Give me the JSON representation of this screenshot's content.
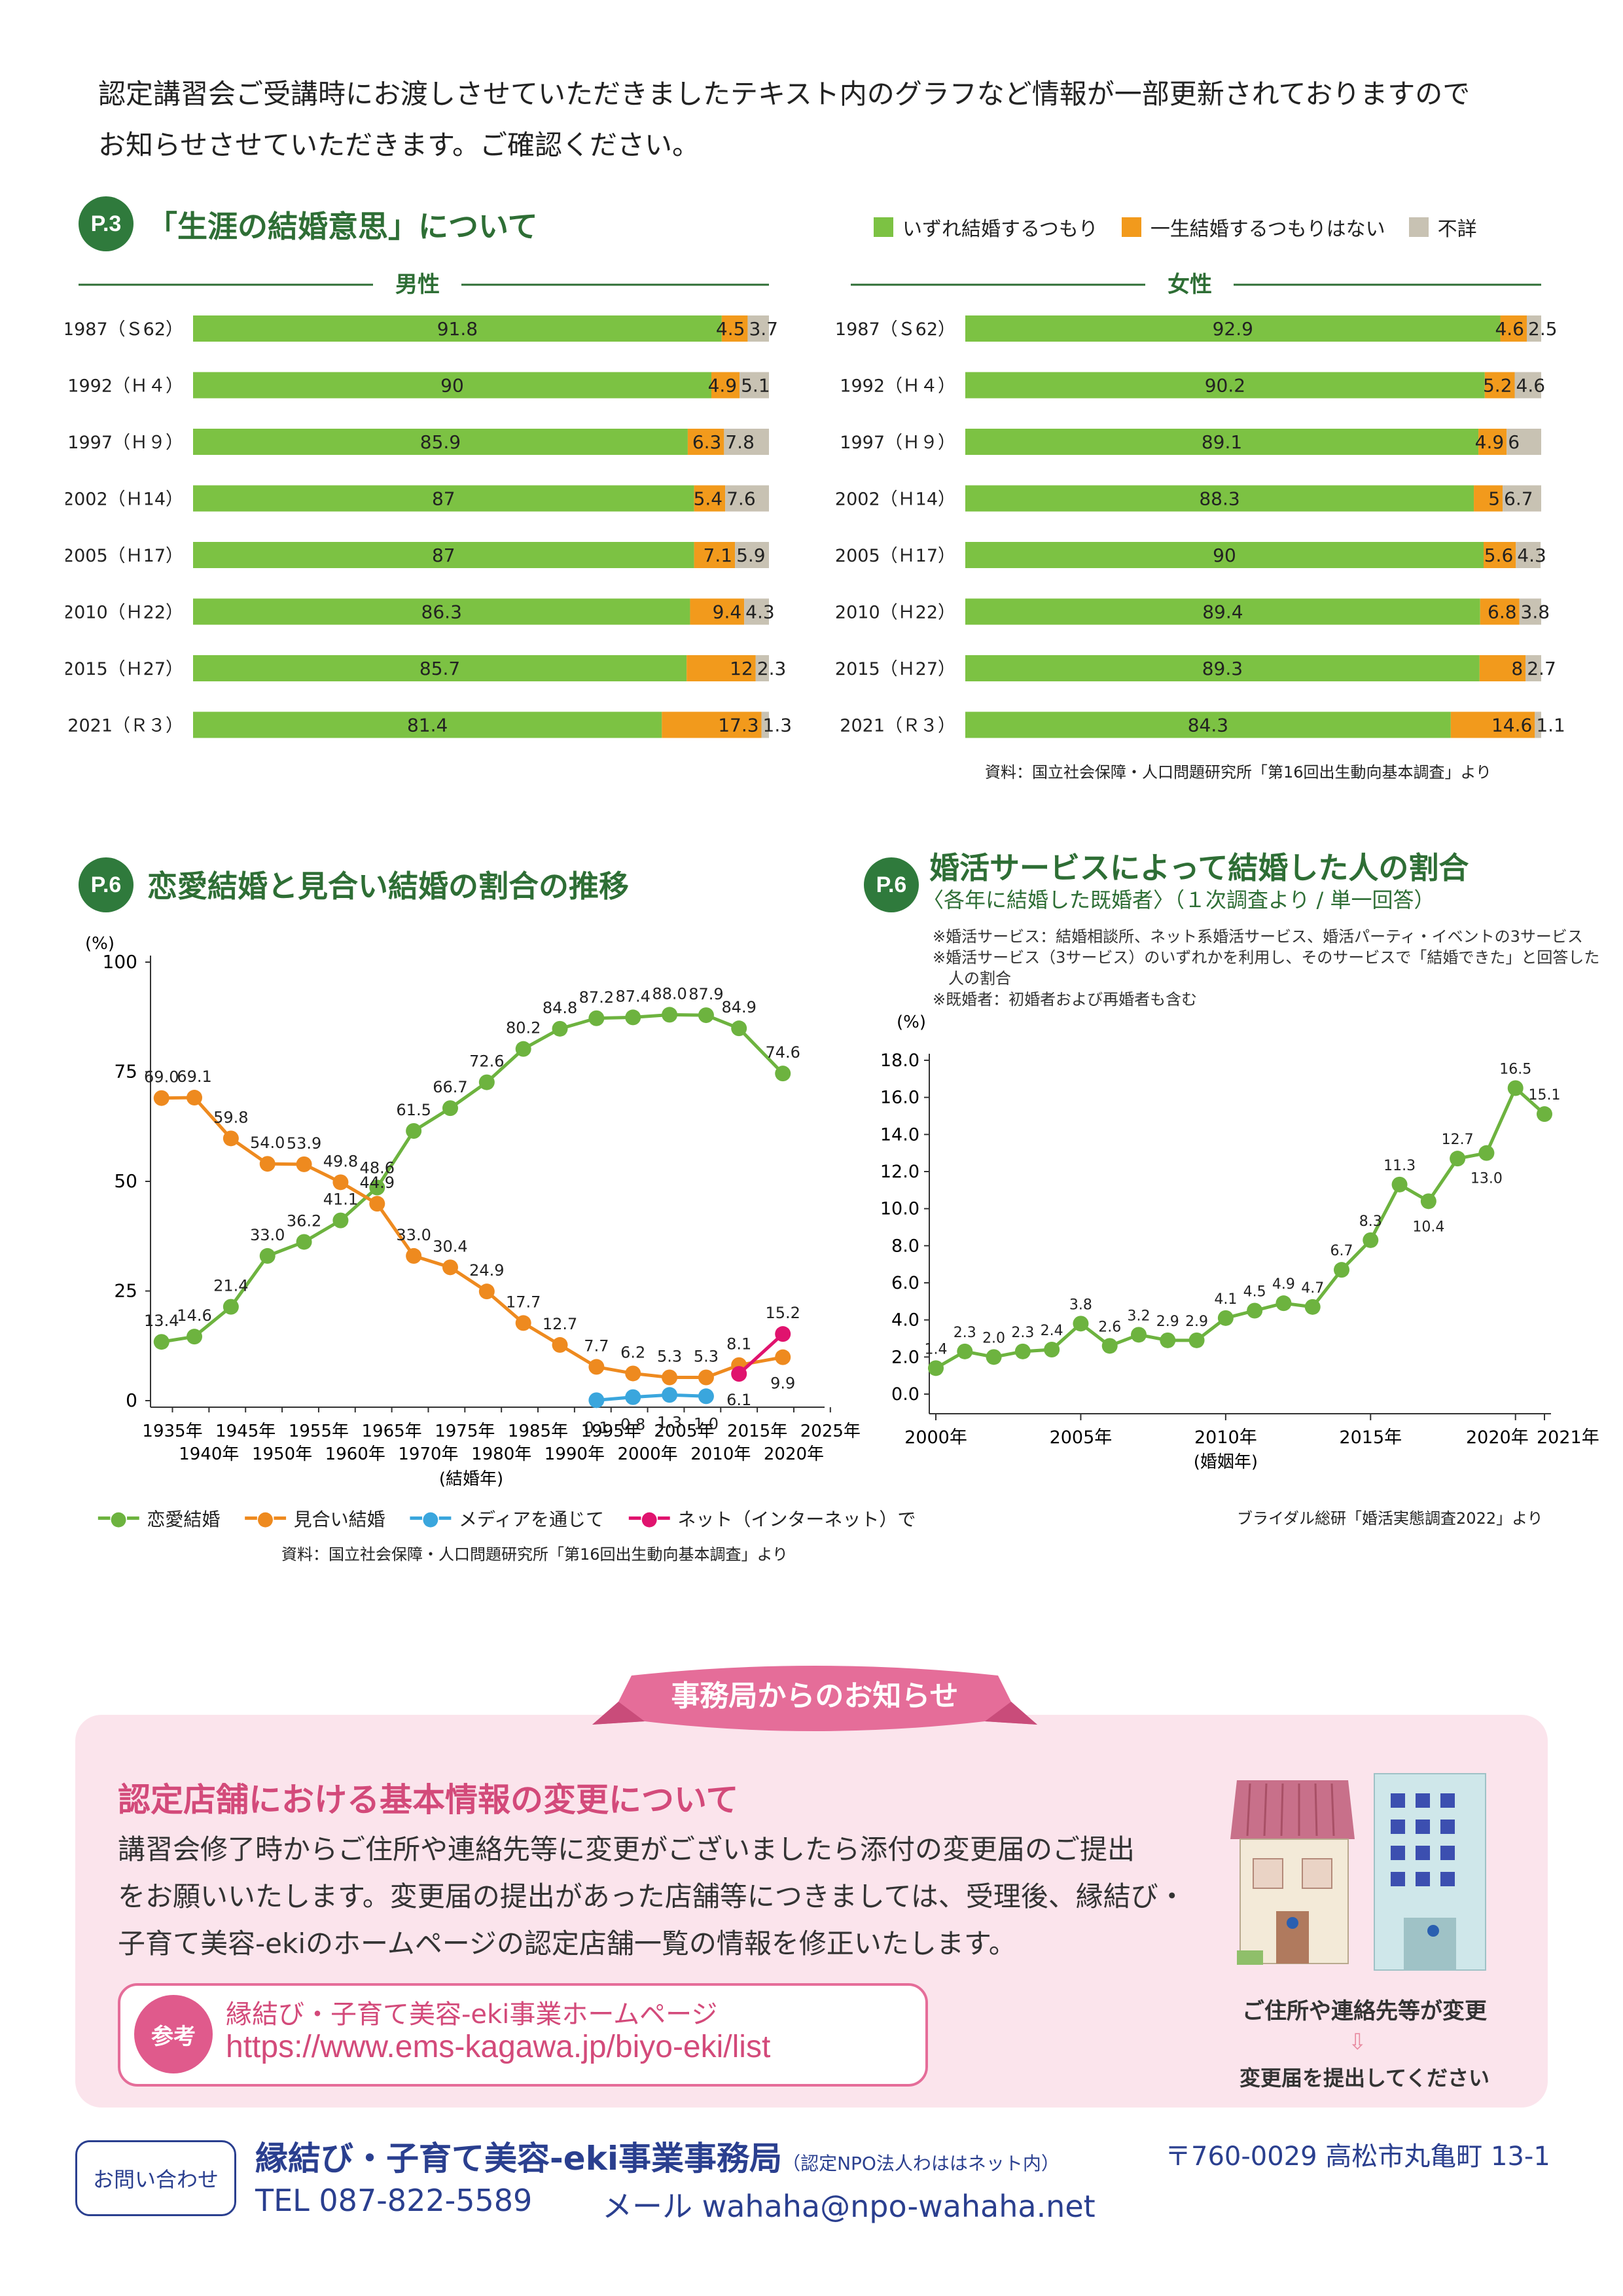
{
  "intro": {
    "line1": "認定講習会ご受講時にお渡しさせていただきましたテキスト内のグラフなど情報が一部更新されておりますので",
    "line2": "お知らせさせていただきます。ご確認ください。"
  },
  "sec1": {
    "badge": "P.3",
    "title": "「生涯の結婚意思」について",
    "male_head": "男性",
    "female_head": "女性",
    "legend": [
      "いずれ結婚するつもり",
      "一生結婚するつもりはない",
      "不詳"
    ],
    "source": "資料：国立社会保障・人口問題研究所「第16回出生動向基本調査」より"
  },
  "sec2": {
    "badge": "P.6",
    "title": "恋愛結婚と見合い結婚の割合の推移",
    "source": "資料：国立社会保障・人口問題研究所「第16回出生動向基本調査」より"
  },
  "sec3": {
    "badge": "P.6",
    "title": "婚活サービスによって結婚した人の割合",
    "subtitle": "〈各年に結婚した既婚者〉（１次調査より / 単一回答）",
    "note1": "※婚活サービス：結婚相談所、ネット系婚活サービス、婚活パーティ・イベントの3サービス",
    "note2": "※婚活サービス（3サービス）のいずれかを利用し、そのサービスで「結婚できた」と回答した",
    "note3": "人の割合",
    "note4": "※既婚者：初婚者および再婚者も含む",
    "source": "ブライダル総研「婚活実態調査2022」より"
  },
  "chart_data": [
    {
      "type": "bar",
      "title": "男性",
      "stacked": true,
      "categories": [
        "1987（Ｓ62）",
        "1992（Ｈ４）",
        "1997（Ｈ９）",
        "2002（Ｈ14）",
        "2005（Ｈ17）",
        "2010（Ｈ22）",
        "2015（Ｈ27）",
        "2021（Ｒ３）"
      ],
      "series": [
        {
          "name": "いずれ結婚するつもり",
          "values": [
            91.8,
            90,
            85.9,
            87,
            87,
            86.3,
            85.7,
            81.4
          ],
          "color": "#7cc243"
        },
        {
          "name": "一生結婚するつもりはない",
          "values": [
            4.5,
            4.9,
            6.3,
            5.4,
            7.1,
            9.4,
            12,
            17.3
          ],
          "color": "#f29a1c"
        },
        {
          "name": "不詳",
          "values": [
            3.7,
            5.1,
            7.8,
            7.6,
            5.9,
            4.3,
            2.3,
            1.3
          ],
          "color": "#c8c2b3"
        }
      ]
    },
    {
      "type": "bar",
      "title": "女性",
      "stacked": true,
      "categories": [
        "1987（Ｓ62）",
        "1992（Ｈ４）",
        "1997（Ｈ９）",
        "2002（Ｈ14）",
        "2005（Ｈ17）",
        "2010（Ｈ22）",
        "2015（Ｈ27）",
        "2021（Ｒ３）"
      ],
      "series": [
        {
          "name": "いずれ結婚するつもり",
          "values": [
            92.9,
            90.2,
            89.1,
            88.3,
            90,
            89.4,
            89.3,
            84.3
          ],
          "color": "#7cc243"
        },
        {
          "name": "一生結婚するつもりはない",
          "values": [
            4.6,
            5.2,
            4.9,
            5,
            5.6,
            6.8,
            8,
            14.6
          ],
          "color": "#f29a1c"
        },
        {
          "name": "不詳",
          "values": [
            2.5,
            4.6,
            6,
            6.7,
            4.3,
            3.8,
            2.7,
            1.1
          ],
          "color": "#c8c2b3"
        }
      ]
    },
    {
      "type": "line",
      "ylabel": "(%)",
      "xlabel": "(結婚年)",
      "ylim": [
        0,
        100
      ],
      "yticks": [
        0,
        25,
        50,
        75,
        100
      ],
      "xlim": [
        1932,
        2026
      ],
      "xticks_top": [
        "1935年",
        "1945年",
        "1955年",
        "1965年",
        "1975年",
        "1985年",
        "1995年",
        "2005年",
        "2015年",
        "2025年"
      ],
      "xticks_bottom": [
        "1940年",
        "1950年",
        "1960年",
        "1970年",
        "1980年",
        "1990年",
        "2000年",
        "2010年",
        "2020年"
      ],
      "series": [
        {
          "name": "恋愛結婚",
          "color": "#6db33f",
          "x": [
            1933.5,
            1938,
            1943,
            1948,
            1953,
            1958,
            1963,
            1968,
            1973,
            1978,
            1983,
            1988,
            1993,
            1998,
            2003,
            2008,
            2012.5,
            2018.5
          ],
          "y": [
            13.4,
            14.6,
            21.4,
            33.0,
            36.2,
            41.1,
            48.6,
            61.5,
            66.7,
            72.6,
            80.2,
            84.8,
            87.2,
            87.4,
            88.0,
            87.9,
            84.9,
            74.6
          ],
          "labels": [
            "13.4",
            "14.6",
            "21.4",
            "33.0",
            "36.2",
            "41.1",
            "48.6",
            "61.5",
            "66.7",
            "72.6",
            "80.2",
            "84.8",
            "87.2",
            "87.4",
            "88.0",
            "87.9",
            "84.9",
            "74.6"
          ]
        },
        {
          "name": "見合い結婚",
          "color": "#ee8a1f",
          "x": [
            1933.5,
            1938,
            1943,
            1948,
            1953,
            1958,
            1963,
            1968,
            1973,
            1978,
            1983,
            1988,
            1993,
            1998,
            2003,
            2008,
            2012.5,
            2018.5
          ],
          "y": [
            69.0,
            69.1,
            59.8,
            54.0,
            53.9,
            49.8,
            44.9,
            33.0,
            30.4,
            24.9,
            17.7,
            12.7,
            7.7,
            6.2,
            5.3,
            5.3,
            8.1,
            9.9
          ],
          "labels": [
            "69.0",
            "69.1",
            "59.8",
            "54.0",
            "53.9",
            "49.8",
            "44.9",
            "33.0",
            "30.4",
            "24.9",
            "17.7",
            "12.7",
            "7.7",
            "6.2",
            "5.3",
            "5.3",
            "8.1",
            "9.9"
          ]
        },
        {
          "name": "メディアを通じて",
          "color": "#3aa6dd",
          "x": [
            1993,
            1998,
            2003,
            2008
          ],
          "y": [
            0.1,
            0.8,
            1.3,
            1.0
          ],
          "labels": [
            "0.1",
            "0.8",
            "1.3",
            "1.0"
          ]
        },
        {
          "name": "ネット（インターネット）で",
          "color": "#e0136e",
          "x": [
            2012.5,
            2018.5
          ],
          "y": [
            6.1,
            15.2
          ],
          "labels": [
            "6.1",
            "15.2"
          ]
        }
      ]
    },
    {
      "type": "line",
      "ylabel": "(%)",
      "xlabel": "(婚姻年)",
      "ylim": [
        0,
        18
      ],
      "yticks": [
        "0.0",
        "2.0",
        "4.0",
        "6.0",
        "8.0",
        "10.0",
        "12.0",
        "14.0",
        "16.0",
        "18.0"
      ],
      "xticks": [
        "2000年",
        "2005年",
        "2010年",
        "2015年",
        "2020年",
        "2021年"
      ],
      "series": [
        {
          "name": "婚活サービスによって結婚した人の割合",
          "color": "#6db33f",
          "x": [
            2000,
            2001,
            2002,
            2003,
            2004,
            2005,
            2006,
            2007,
            2008,
            2009,
            2010,
            2011,
            2012,
            2013,
            2014,
            2015,
            2016,
            2017,
            2018,
            2019,
            2020,
            2021
          ],
          "y": [
            1.4,
            2.3,
            2.0,
            2.3,
            2.4,
            3.8,
            2.6,
            3.2,
            2.9,
            2.9,
            4.1,
            4.5,
            4.9,
            4.7,
            6.7,
            8.3,
            11.3,
            10.4,
            12.7,
            13.0,
            16.5,
            15.1
          ],
          "labels": [
            "1.4",
            "2.3",
            "2.0",
            "2.3",
            "2.4",
            "3.8",
            "2.6",
            "3.2",
            "2.9",
            "2.9",
            "4.1",
            "4.5",
            "4.9",
            "4.7",
            "6.7",
            "8.3",
            "11.3",
            "10.4",
            "12.7",
            "13.0",
            "16.5",
            "15.1"
          ]
        }
      ]
    }
  ],
  "notice": {
    "ribbon": "事務局からのお知らせ",
    "title": "認定店舗における基本情報の変更について",
    "body1": "講習会修了時からご住所や連絡先等に変更がございましたら添付の変更届のご提出",
    "body2": "をお願いいたします。変更届の提出があった店舗等につきましては、受理後、縁結び・",
    "body3": "子育て美容-ekiのホームページの認定店舗一覧の情報を修正いたします。",
    "ref_label": "参考",
    "ref_title": "縁結び・子育て美容-eki事業ホームページ",
    "ref_url": "https://www.ems-kagawa.jp/biyo-eki/list",
    "illus_cap1": "ご住所や連絡先等が変更",
    "illus_cap2": "変更届を提出してください"
  },
  "contact": {
    "tag": "お問い合わせ",
    "org": "縁結び・子育て美容-eki事業事務局",
    "org_sub": "（認定NPO法人わははネット内）",
    "address": "〒760-0029 高松市丸亀町 13-1",
    "tel": "TEL 087-822-5589",
    "mail": "メール wahaha@npo-wahaha.net"
  }
}
